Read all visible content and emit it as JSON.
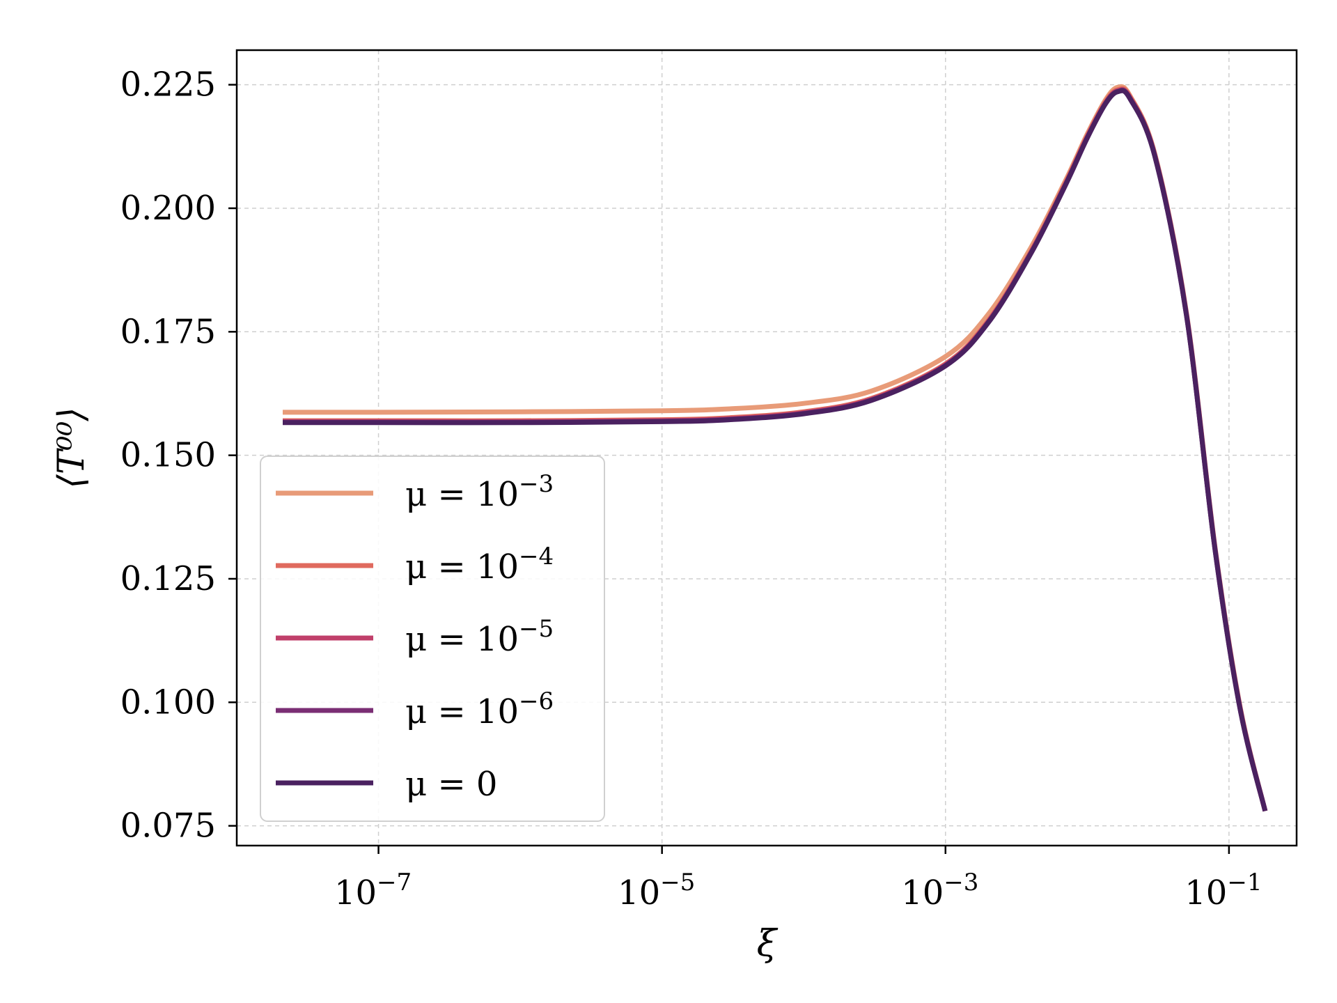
{
  "chart_data": {
    "type": "line",
    "xscale": "log",
    "xlabel": "ξ",
    "ylabel": "⟨T⁰⁰⟩",
    "xlim": [
      1e-08,
      0.3
    ],
    "ylim": [
      0.071,
      0.232
    ],
    "grid": true,
    "legend_position": "lower-left",
    "x_ticks": [
      {
        "value": 1e-07,
        "base": "10",
        "exp": "−7"
      },
      {
        "value": 1e-05,
        "base": "10",
        "exp": "−5"
      },
      {
        "value": 0.001,
        "base": "10",
        "exp": "−3"
      },
      {
        "value": 0.1,
        "base": "10",
        "exp": "−1"
      }
    ],
    "y_ticks": [
      {
        "value": 0.075,
        "label": "0.075"
      },
      {
        "value": 0.1,
        "label": "0.100"
      },
      {
        "value": 0.125,
        "label": "0.125"
      },
      {
        "value": 0.15,
        "label": "0.150"
      },
      {
        "value": 0.175,
        "label": "0.175"
      },
      {
        "value": 0.2,
        "label": "0.200"
      },
      {
        "value": 0.225,
        "label": "0.225"
      }
    ],
    "series": [
      {
        "name": "μ = 10−3",
        "name_main": "μ = 10",
        "name_exp": "−3",
        "color": "#e89b78",
        "points": [
          [
            1e-08,
            0.1587
          ],
          [
            1e-07,
            0.1587
          ],
          [
            1e-06,
            0.1588
          ],
          [
            1e-05,
            0.159
          ],
          [
            3e-05,
            0.1594
          ],
          [
            0.0001,
            0.1605
          ],
          [
            0.0003,
            0.163
          ],
          [
            0.001,
            0.17
          ],
          [
            0.002,
            0.1785
          ],
          [
            0.004,
            0.192
          ],
          [
            0.007,
            0.2055
          ],
          [
            0.01,
            0.215
          ],
          [
            0.0135,
            0.222
          ],
          [
            0.0165,
            0.2245
          ],
          [
            0.02,
            0.2228
          ],
          [
            0.03,
            0.211
          ],
          [
            0.05,
            0.179
          ],
          [
            0.08,
            0.131
          ],
          [
            0.12,
            0.099
          ],
          [
            0.18,
            0.078
          ]
        ]
      },
      {
        "name": "μ = 10−4",
        "name_main": "μ = 10",
        "name_exp": "−4",
        "color": "#e06a5e",
        "points": [
          [
            1e-08,
            0.157
          ],
          [
            1e-07,
            0.157
          ],
          [
            1e-06,
            0.157
          ],
          [
            1e-05,
            0.1572
          ],
          [
            3e-05,
            0.1576
          ],
          [
            0.0001,
            0.1588
          ],
          [
            0.0003,
            0.1615
          ],
          [
            0.001,
            0.1685
          ],
          [
            0.002,
            0.1772
          ],
          [
            0.004,
            0.1912
          ],
          [
            0.007,
            0.205
          ],
          [
            0.01,
            0.2146
          ],
          [
            0.0135,
            0.2216
          ],
          [
            0.0165,
            0.224
          ],
          [
            0.02,
            0.2226
          ],
          [
            0.03,
            0.2108
          ],
          [
            0.05,
            0.1788
          ],
          [
            0.08,
            0.1308
          ],
          [
            0.12,
            0.0988
          ],
          [
            0.18,
            0.078
          ]
        ]
      },
      {
        "name": "μ = 10−5",
        "name_main": "μ = 10",
        "name_exp": "−5",
        "color": "#c03f6a",
        "points": [
          [
            1e-08,
            0.1568
          ],
          [
            1e-07,
            0.1568
          ],
          [
            1e-06,
            0.1568
          ],
          [
            1e-05,
            0.157
          ],
          [
            3e-05,
            0.1574
          ],
          [
            0.0001,
            0.1586
          ],
          [
            0.0003,
            0.1613
          ],
          [
            0.001,
            0.1683
          ],
          [
            0.002,
            0.177
          ],
          [
            0.004,
            0.191
          ],
          [
            0.007,
            0.2048
          ],
          [
            0.01,
            0.2144
          ],
          [
            0.0135,
            0.2214
          ],
          [
            0.0165,
            0.2238
          ],
          [
            0.02,
            0.2224
          ],
          [
            0.03,
            0.2107
          ],
          [
            0.05,
            0.1787
          ],
          [
            0.08,
            0.1307
          ],
          [
            0.12,
            0.0987
          ],
          [
            0.18,
            0.078
          ]
        ]
      },
      {
        "name": "μ = 10−6",
        "name_main": "μ = 10",
        "name_exp": "−6",
        "color": "#7a2e74",
        "points": [
          [
            1e-08,
            0.1567
          ],
          [
            1e-07,
            0.1567
          ],
          [
            1e-06,
            0.1567
          ],
          [
            1e-05,
            0.1569
          ],
          [
            3e-05,
            0.1573
          ],
          [
            0.0001,
            0.1585
          ],
          [
            0.0003,
            0.1612
          ],
          [
            0.001,
            0.1682
          ],
          [
            0.002,
            0.1769
          ],
          [
            0.004,
            0.1909
          ],
          [
            0.007,
            0.2047
          ],
          [
            0.01,
            0.2143
          ],
          [
            0.0135,
            0.2213
          ],
          [
            0.0165,
            0.2237
          ],
          [
            0.02,
            0.2223
          ],
          [
            0.03,
            0.2106
          ],
          [
            0.05,
            0.1786
          ],
          [
            0.08,
            0.1306
          ],
          [
            0.12,
            0.0986
          ],
          [
            0.18,
            0.078
          ]
        ]
      },
      {
        "name": "μ = 0",
        "name_main": "μ = 0",
        "name_exp": "",
        "color": "#4a2160",
        "points": [
          [
            1e-08,
            0.1566
          ],
          [
            1e-07,
            0.1566
          ],
          [
            1e-06,
            0.1566
          ],
          [
            1e-05,
            0.1568
          ],
          [
            3e-05,
            0.1572
          ],
          [
            0.0001,
            0.1584
          ],
          [
            0.0003,
            0.1611
          ],
          [
            0.001,
            0.1681
          ],
          [
            0.002,
            0.1768
          ],
          [
            0.004,
            0.1908
          ],
          [
            0.007,
            0.2046
          ],
          [
            0.01,
            0.2142
          ],
          [
            0.0135,
            0.2212
          ],
          [
            0.0165,
            0.2236
          ],
          [
            0.02,
            0.2222
          ],
          [
            0.03,
            0.2105
          ],
          [
            0.05,
            0.1785
          ],
          [
            0.08,
            0.1305
          ],
          [
            0.12,
            0.0985
          ],
          [
            0.18,
            0.078
          ]
        ]
      }
    ]
  }
}
